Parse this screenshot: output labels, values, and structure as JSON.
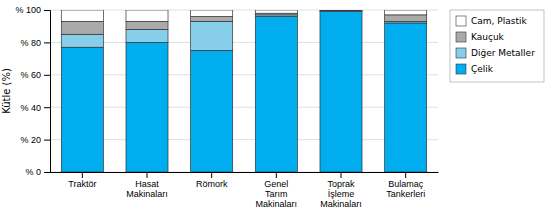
{
  "chart_data": {
    "type": "bar",
    "stacked": true,
    "categories": [
      "Traktör",
      "Hasat\nMakinaları",
      "Römork",
      "Genel\nTarım\nMakinaları",
      "Toprak\nİşleme\nMakinaları",
      "Bulamaç\nTankerleri"
    ],
    "series": [
      {
        "name": "Çelik",
        "color": "#00AEEF",
        "values": [
          77,
          80,
          75,
          96,
          99,
          92
        ]
      },
      {
        "name": "Diğer Metaller",
        "color": "#87CEEB",
        "values": [
          8,
          8,
          18,
          1,
          0.5,
          1
        ]
      },
      {
        "name": "Kauçuk",
        "color": "#AAAAAA",
        "values": [
          8,
          5,
          3,
          1,
          0.5,
          4
        ]
      },
      {
        "name": "Cam, Plastik",
        "color": "#FFFFFF",
        "values": [
          7,
          7,
          4,
          2,
          0,
          3
        ]
      }
    ],
    "y_label": "Kütle (%)",
    "ylim": [
      0,
      100
    ],
    "yticks": [
      {
        "value": 0,
        "label": "% 0"
      },
      {
        "value": 20,
        "label": "% 20"
      },
      {
        "value": 40,
        "label": "% 40"
      },
      {
        "value": 60,
        "label": "% 60"
      },
      {
        "value": 80,
        "label": "% 80"
      },
      {
        "value": 100,
        "label": "% 100"
      }
    ],
    "grid": true,
    "legend": "right"
  }
}
